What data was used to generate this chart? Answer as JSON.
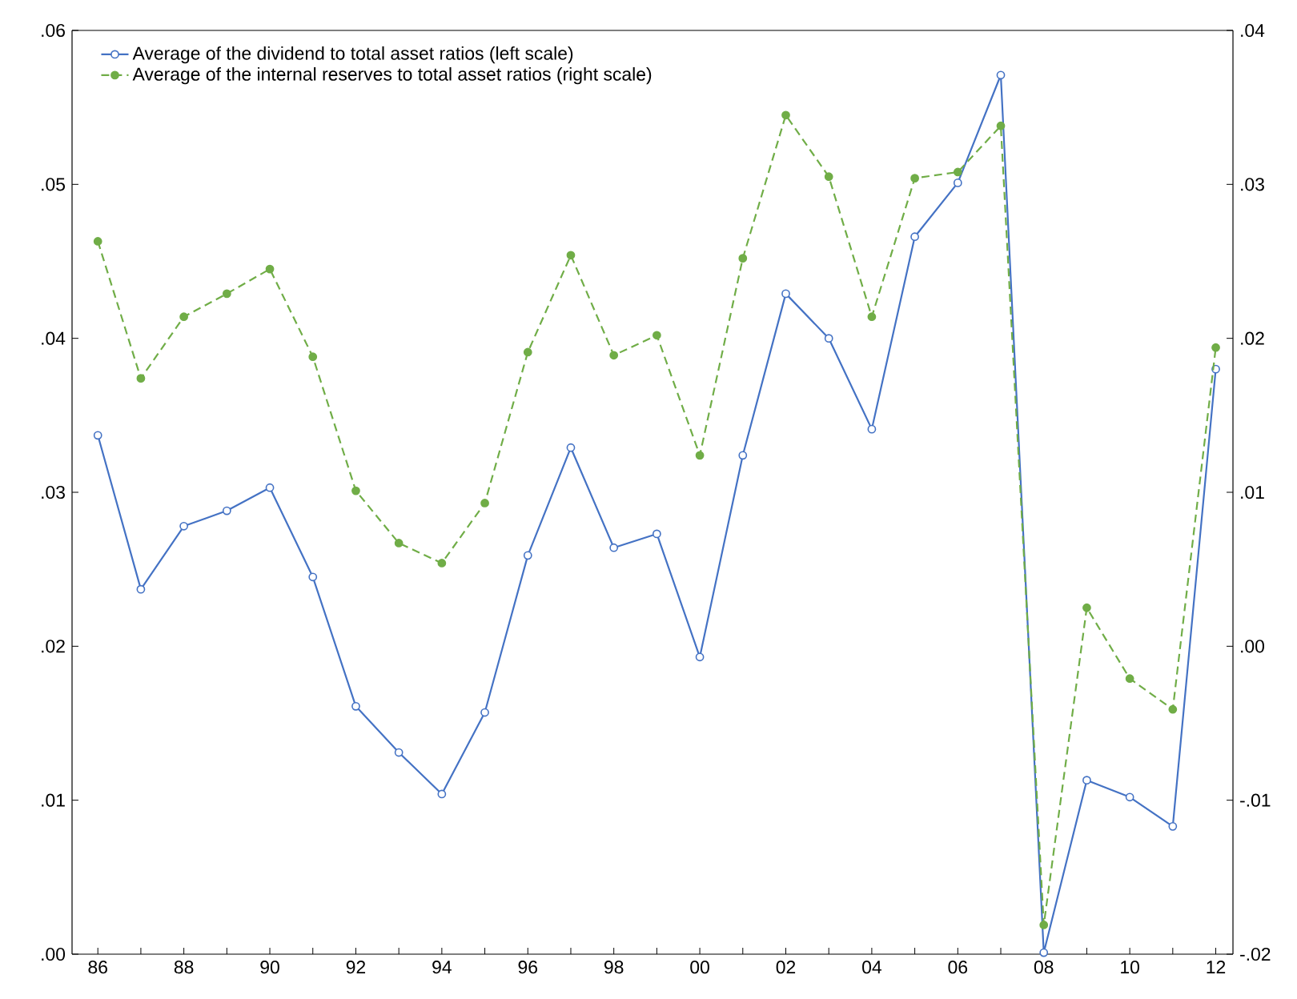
{
  "chart_data": {
    "type": "line",
    "legend": "top left",
    "grid": false,
    "x": [
      1986,
      1987,
      1988,
      1989,
      1990,
      1991,
      1992,
      1993,
      1994,
      1995,
      1996,
      1997,
      1998,
      1999,
      2000,
      2001,
      2002,
      2003,
      2004,
      2005,
      2006,
      2007,
      2008,
      2009,
      2010,
      2011,
      2012
    ],
    "xlim": [
      1985.4,
      2012.4
    ],
    "xticks": [
      {
        "value": 1986,
        "label": "86"
      },
      {
        "value": 1987,
        "label": null
      },
      {
        "value": 1988,
        "label": "88"
      },
      {
        "value": 1989,
        "label": null
      },
      {
        "value": 1990,
        "label": "90"
      },
      {
        "value": 1991,
        "label": null
      },
      {
        "value": 1992,
        "label": "92"
      },
      {
        "value": 1993,
        "label": null
      },
      {
        "value": 1994,
        "label": "94"
      },
      {
        "value": 1995,
        "label": null
      },
      {
        "value": 1996,
        "label": "96"
      },
      {
        "value": 1997,
        "label": null
      },
      {
        "value": 1998,
        "label": "98"
      },
      {
        "value": 1999,
        "label": null
      },
      {
        "value": 2000,
        "label": "00"
      },
      {
        "value": 2001,
        "label": null
      },
      {
        "value": 2002,
        "label": "02"
      },
      {
        "value": 2003,
        "label": null
      },
      {
        "value": 2004,
        "label": "04"
      },
      {
        "value": 2005,
        "label": null
      },
      {
        "value": 2006,
        "label": "06"
      },
      {
        "value": 2007,
        "label": null
      },
      {
        "value": 2008,
        "label": "08"
      },
      {
        "value": 2009,
        "label": null
      },
      {
        "value": 2010,
        "label": "10"
      },
      {
        "value": 2011,
        "label": null
      },
      {
        "value": 2012,
        "label": "12"
      }
    ],
    "ylim": [
      0,
      0.06
    ],
    "yticks": [
      {
        "value": 0,
        "label": ".00"
      },
      {
        "value": 0.01,
        "label": ".01"
      },
      {
        "value": 0.02,
        "label": ".02"
      },
      {
        "value": 0.03,
        "label": ".03"
      },
      {
        "value": 0.04,
        "label": ".04"
      },
      {
        "value": 0.05,
        "label": ".05"
      },
      {
        "value": 0.06,
        "label": ".06"
      }
    ],
    "y2lim": [
      -0.02,
      0.04
    ],
    "y2ticks": [
      {
        "value": -0.02,
        "label": "-.02"
      },
      {
        "value": -0.01,
        "label": "-.01"
      },
      {
        "value": 0,
        "label": ".00"
      },
      {
        "value": 0.01,
        "label": ".01"
      },
      {
        "value": 0.02,
        "label": ".02"
      },
      {
        "value": 0.03,
        "label": ".03"
      },
      {
        "value": 0.04,
        "label": ".04"
      }
    ],
    "series": [
      {
        "name": "Average of the dividend to total asset ratios (left scale)",
        "color": "#4472c4",
        "marker": "circle",
        "line_style": "solid",
        "values": [
          0.0337,
          0.0237,
          0.0278,
          0.0288,
          0.0303,
          0.0245,
          0.0161,
          0.0131,
          0.0104,
          0.0157,
          0.0259,
          0.0329,
          0.0264,
          0.0273,
          0.0193,
          0.0324,
          0.0429,
          0.04,
          0.0341,
          0.0466,
          0.0501,
          0.0571,
          0.0001,
          0.0113,
          0.0102,
          0.0083,
          0.038
        ]
      },
      {
        "name": "Average of the internal reserves to total asset ratios (right scale)",
        "color": "#70ad47",
        "marker": "circle",
        "line_style": "dashed",
        "axis": "y2",
        "values": [
          0.0263,
          0.0174,
          0.0214,
          0.0229,
          0.0245,
          0.0188,
          0.0101,
          0.0067,
          0.0054,
          0.0093,
          0.0191,
          0.0254,
          0.0189,
          0.0202,
          0.0124,
          0.0252,
          0.0345,
          0.0305,
          0.0214,
          0.0304,
          0.0308,
          0.0338,
          -0.0181,
          0.0025,
          -0.0021,
          -0.0041,
          0.0194
        ]
      }
    ]
  }
}
